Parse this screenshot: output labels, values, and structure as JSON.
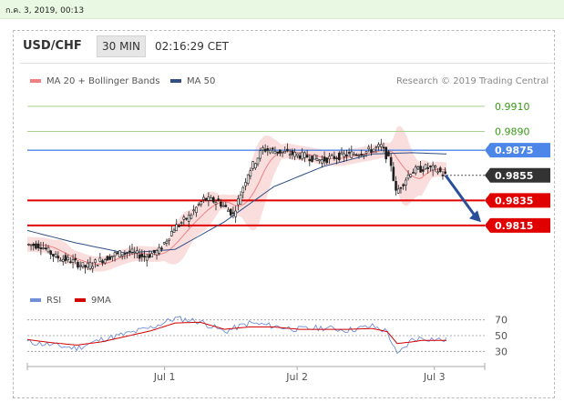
{
  "topbar": {
    "date": "ก.ค. 3, 2019, 00:13"
  },
  "header": {
    "symbol": "USD/CHF",
    "timeframe": "30 MIN",
    "time": "02:16:29 CET"
  },
  "legend": {
    "items": [
      {
        "label": "MA 20 + Bollinger Bands",
        "color": "#f08080"
      },
      {
        "label": "MA 50",
        "color": "#2f4f86"
      }
    ],
    "credit": "Research © 2019 Trading Central"
  },
  "rsi_legend": {
    "items": [
      {
        "label": "RSI",
        "color": "#6f8fd8"
      },
      {
        "label": "9MA",
        "color": "#d40000"
      }
    ]
  },
  "colors": {
    "resistance_green": "#a8d28f",
    "pivot_blue": "#4c86e8",
    "support_red": "#e00000",
    "price_box": "#333333",
    "candle": "#1f1f1f",
    "arrow": "#2a4f9a"
  },
  "chart_data": {
    "type": "candlestick",
    "ylim": [
      0.977,
      0.9915
    ],
    "x_ticks": [
      "Jul 1",
      "Jul 2",
      "Jul 3"
    ],
    "levels": [
      {
        "value": "0.9910",
        "kind": "resistance"
      },
      {
        "value": "0.9890",
        "kind": "resistance"
      },
      {
        "value": "0.9875",
        "kind": "pivot"
      },
      {
        "value": "0.9855",
        "kind": "current"
      },
      {
        "value": "0.9835",
        "kind": "support"
      },
      {
        "value": "0.9815",
        "kind": "support"
      }
    ],
    "price_path": [
      [
        0,
        0.98
      ],
      [
        6,
        0.9799
      ],
      [
        12,
        0.979
      ],
      [
        18,
        0.9787
      ],
      [
        24,
        0.9782
      ],
      [
        30,
        0.9787
      ],
      [
        36,
        0.9792
      ],
      [
        42,
        0.9794
      ],
      [
        48,
        0.979
      ],
      [
        54,
        0.9795
      ],
      [
        60,
        0.9813
      ],
      [
        66,
        0.9822
      ],
      [
        72,
        0.9836
      ],
      [
        78,
        0.9834
      ],
      [
        84,
        0.9824
      ],
      [
        90,
        0.9857
      ],
      [
        96,
        0.9876
      ],
      [
        102,
        0.9874
      ],
      [
        108,
        0.9872
      ],
      [
        114,
        0.987
      ],
      [
        120,
        0.9867
      ],
      [
        126,
        0.987
      ],
      [
        132,
        0.9872
      ],
      [
        138,
        0.9874
      ],
      [
        144,
        0.9878
      ],
      [
        148,
        0.9864
      ],
      [
        150,
        0.9841
      ],
      [
        156,
        0.9858
      ],
      [
        162,
        0.9861
      ],
      [
        166,
        0.986
      ],
      [
        170,
        0.9855
      ]
    ],
    "ma50": [
      [
        0,
        0.9811
      ],
      [
        20,
        0.9801
      ],
      [
        40,
        0.9793
      ],
      [
        60,
        0.9796
      ],
      [
        80,
        0.9818
      ],
      [
        100,
        0.9846
      ],
      [
        120,
        0.9862
      ],
      [
        140,
        0.9872
      ],
      [
        156,
        0.9873
      ],
      [
        170,
        0.9872
      ]
    ],
    "rsi": {
      "ylim": [
        20,
        80
      ],
      "ticks": [
        "70",
        "50",
        "30"
      ],
      "rsi": [
        [
          0,
          42
        ],
        [
          10,
          38
        ],
        [
          20,
          34
        ],
        [
          30,
          45
        ],
        [
          40,
          52
        ],
        [
          50,
          60
        ],
        [
          60,
          72
        ],
        [
          70,
          68
        ],
        [
          80,
          55
        ],
        [
          90,
          66
        ],
        [
          100,
          62
        ],
        [
          110,
          58
        ],
        [
          120,
          60
        ],
        [
          130,
          57
        ],
        [
          140,
          62
        ],
        [
          146,
          55
        ],
        [
          150,
          25
        ],
        [
          156,
          45
        ],
        [
          160,
          47
        ],
        [
          170,
          44
        ]
      ],
      "ma9": [
        [
          0,
          45
        ],
        [
          10,
          41
        ],
        [
          20,
          38
        ],
        [
          30,
          42
        ],
        [
          40,
          49
        ],
        [
          50,
          56
        ],
        [
          60,
          66
        ],
        [
          70,
          67
        ],
        [
          80,
          58
        ],
        [
          90,
          61
        ],
        [
          100,
          61
        ],
        [
          110,
          58
        ],
        [
          120,
          58
        ],
        [
          130,
          58
        ],
        [
          140,
          59
        ],
        [
          146,
          55
        ],
        [
          150,
          40
        ],
        [
          156,
          42
        ],
        [
          160,
          44
        ],
        [
          170,
          44
        ]
      ]
    }
  }
}
